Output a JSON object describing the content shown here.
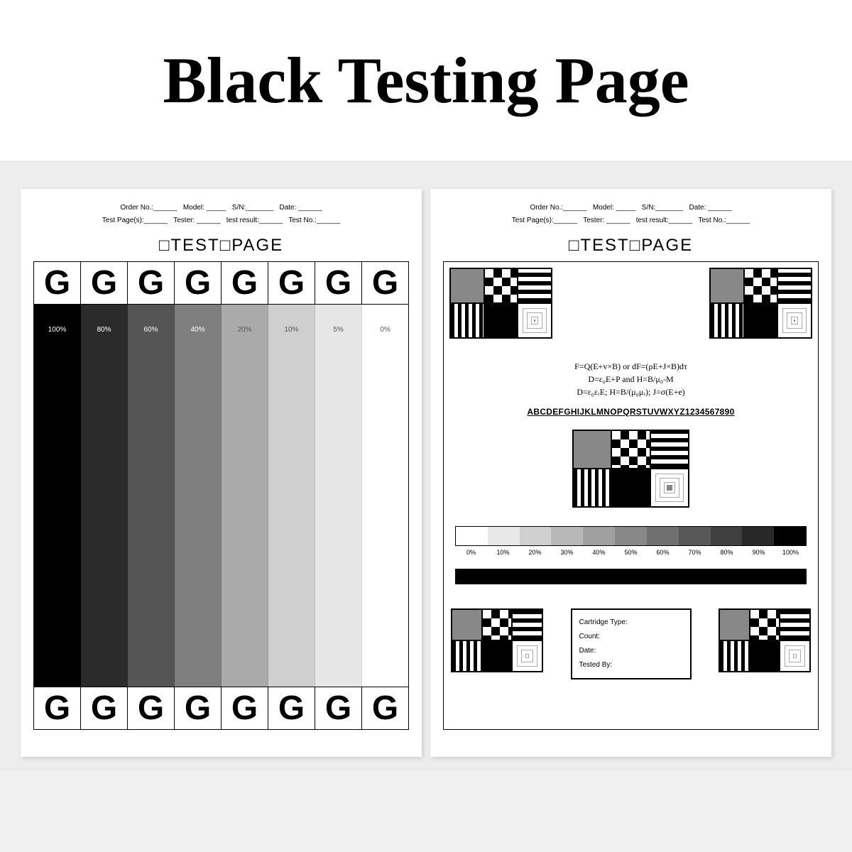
{
  "title": "Black Testing Page",
  "header": {
    "line1": "Order No.:______   Model: _____   S/N:_______   Date: ______",
    "line2": "Test Page(s):______   Tester: ______   test result:______   Test No.:______"
  },
  "test_page_label": "□TEST□PAGE",
  "left_page": {
    "letter": "G",
    "columns": 8,
    "gradient": {
      "labels": [
        "100%",
        "80%",
        "60%",
        "40%",
        "20%",
        "10%",
        "5%",
        "0%"
      ],
      "colors": [
        "#000000",
        "#2b2b2b",
        "#555555",
        "#7f7f7f",
        "#aaaaaa",
        "#cfcfcf",
        "#e6e6e6",
        "#ffffff"
      ],
      "text_class": [
        "dark",
        "dark",
        "dark",
        "dark",
        "light",
        "light",
        "light",
        "light"
      ]
    }
  },
  "right_page": {
    "formulas": [
      "F=Q(E+v×B)  or  dF=(ρE+J×B)dτ",
      "D=ε₀E+P  and  H=B/μ₀-M",
      "D=ε₀εᵣE;  H=B/(μ₀μᵣ);  J=σ(E+e)"
    ],
    "alphanum": "ABCDEFGHIJKLMNOPQRSTUVWXYZ1234567890",
    "scale": {
      "labels": [
        "0%",
        "10%",
        "20%",
        "30%",
        "40%",
        "50%",
        "60%",
        "70%",
        "80%",
        "90%",
        "100%"
      ],
      "colors": [
        "#ffffff",
        "#e8e8e8",
        "#d0d0d0",
        "#b8b8b8",
        "#a0a0a0",
        "#888888",
        "#707070",
        "#585858",
        "#404040",
        "#282828",
        "#000000"
      ]
    },
    "info_fields": [
      "Cartridge Type:",
      "Count:",
      "Date:",
      "Tested By:"
    ]
  }
}
